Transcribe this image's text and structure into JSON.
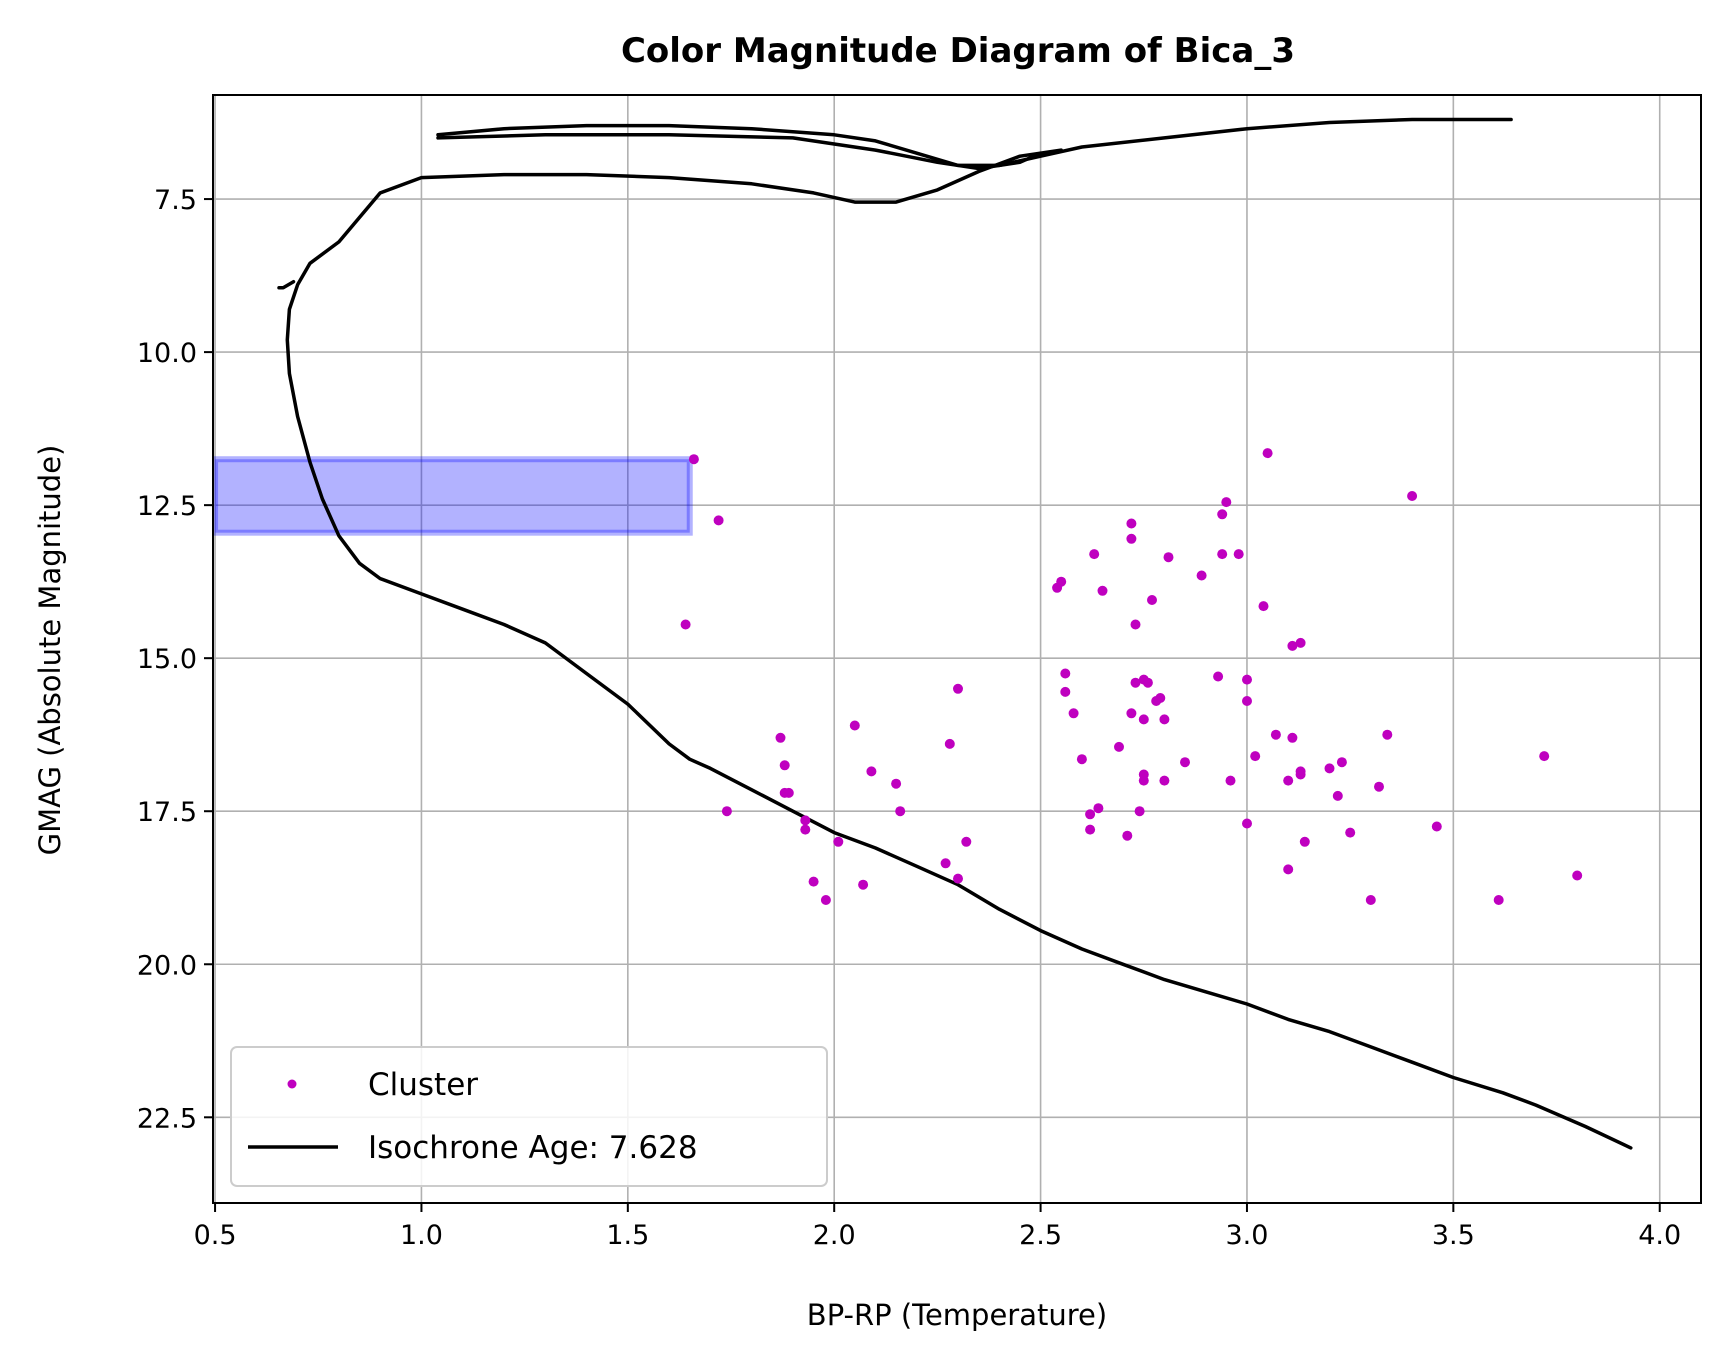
{
  "chart_data": {
    "type": "scatter",
    "title": "Color Magnitude Diagram of Bica_3",
    "xlabel": "BP-RP (Temperature)",
    "ylabel": "GMAG (Absolute Magnitude)",
    "xlim": [
      0.5,
      4.1
    ],
    "ylim": [
      23.9,
      5.8
    ],
    "y_inverted": true,
    "grid": true,
    "legend_position": "lower-left",
    "xticks": [
      "0.5",
      "1.0",
      "1.5",
      "2.0",
      "2.5",
      "3.0",
      "3.5",
      "4.0"
    ],
    "xtick_values": [
      0.5,
      1.0,
      1.5,
      2.0,
      2.5,
      3.0,
      3.5,
      4.0
    ],
    "yticks": [
      "7.5",
      "10.0",
      "12.5",
      "15.0",
      "17.5",
      "20.0",
      "22.5"
    ],
    "ytick_values": [
      7.5,
      10.0,
      12.5,
      15.0,
      17.5,
      20.0,
      22.5
    ],
    "series": [
      {
        "name": "Cluster",
        "kind": "scatter",
        "color": "#bf00bf",
        "points": [
          [
            1.66,
            11.75
          ],
          [
            1.72,
            12.75
          ],
          [
            1.64,
            14.45
          ],
          [
            1.74,
            17.5
          ],
          [
            1.87,
            16.3
          ],
          [
            1.88,
            16.75
          ],
          [
            1.88,
            17.2
          ],
          [
            1.89,
            17.2
          ],
          [
            1.93,
            17.65
          ],
          [
            1.93,
            17.8
          ],
          [
            1.95,
            18.65
          ],
          [
            1.98,
            18.95
          ],
          [
            2.01,
            18.0
          ],
          [
            2.05,
            16.1
          ],
          [
            2.07,
            18.7
          ],
          [
            2.09,
            16.85
          ],
          [
            2.15,
            17.05
          ],
          [
            2.16,
            17.5
          ],
          [
            2.27,
            18.35
          ],
          [
            2.28,
            16.4
          ],
          [
            2.3,
            18.6
          ],
          [
            2.3,
            15.5
          ],
          [
            2.32,
            18.0
          ],
          [
            2.54,
            13.85
          ],
          [
            2.55,
            13.75
          ],
          [
            2.56,
            15.25
          ],
          [
            2.56,
            15.55
          ],
          [
            2.58,
            15.9
          ],
          [
            2.6,
            16.65
          ],
          [
            2.62,
            17.55
          ],
          [
            2.62,
            17.8
          ],
          [
            2.63,
            13.3
          ],
          [
            2.64,
            17.45
          ],
          [
            2.65,
            13.9
          ],
          [
            2.69,
            16.45
          ],
          [
            2.71,
            17.9
          ],
          [
            2.72,
            15.9
          ],
          [
            2.72,
            13.05
          ],
          [
            2.72,
            12.8
          ],
          [
            2.73,
            14.45
          ],
          [
            2.73,
            15.4
          ],
          [
            2.74,
            17.5
          ],
          [
            2.75,
            15.35
          ],
          [
            2.75,
            16.0
          ],
          [
            2.75,
            16.9
          ],
          [
            2.75,
            17.0
          ],
          [
            2.76,
            15.4
          ],
          [
            2.77,
            14.05
          ],
          [
            2.78,
            15.7
          ],
          [
            2.79,
            15.65
          ],
          [
            2.8,
            16.0
          ],
          [
            2.8,
            17.0
          ],
          [
            2.81,
            13.35
          ],
          [
            2.85,
            16.7
          ],
          [
            2.89,
            13.65
          ],
          [
            2.93,
            15.3
          ],
          [
            2.94,
            12.65
          ],
          [
            2.94,
            13.3
          ],
          [
            2.95,
            12.45
          ],
          [
            2.96,
            17.0
          ],
          [
            2.98,
            13.3
          ],
          [
            3.0,
            15.35
          ],
          [
            3.0,
            15.7
          ],
          [
            3.0,
            17.7
          ],
          [
            3.02,
            16.6
          ],
          [
            3.04,
            14.15
          ],
          [
            3.05,
            11.65
          ],
          [
            3.07,
            16.25
          ],
          [
            3.1,
            17.0
          ],
          [
            3.1,
            18.45
          ],
          [
            3.11,
            14.8
          ],
          [
            3.11,
            16.3
          ],
          [
            3.13,
            14.75
          ],
          [
            3.13,
            16.85
          ],
          [
            3.13,
            16.9
          ],
          [
            3.14,
            18.0
          ],
          [
            3.2,
            16.8
          ],
          [
            3.22,
            17.25
          ],
          [
            3.23,
            16.7
          ],
          [
            3.25,
            17.85
          ],
          [
            3.3,
            18.95
          ],
          [
            3.32,
            17.1
          ],
          [
            3.34,
            16.25
          ],
          [
            3.4,
            12.35
          ],
          [
            3.46,
            17.75
          ],
          [
            3.61,
            18.95
          ],
          [
            3.72,
            16.6
          ],
          [
            3.8,
            18.55
          ]
        ]
      },
      {
        "name": "Isochrone Age: 7.628",
        "kind": "line",
        "color": "#000000",
        "segments": [
          [
            [
              3.93,
              23.0
            ],
            [
              3.82,
              22.65
            ],
            [
              3.7,
              22.3
            ],
            [
              3.62,
              22.1
            ],
            [
              3.5,
              21.85
            ],
            [
              3.4,
              21.6
            ],
            [
              3.3,
              21.35
            ],
            [
              3.2,
              21.1
            ],
            [
              3.1,
              20.9
            ],
            [
              3.0,
              20.65
            ],
            [
              2.9,
              20.45
            ],
            [
              2.8,
              20.25
            ],
            [
              2.7,
              20.0
            ],
            [
              2.6,
              19.75
            ],
            [
              2.5,
              19.45
            ],
            [
              2.4,
              19.1
            ],
            [
              2.3,
              18.7
            ],
            [
              2.2,
              18.4
            ],
            [
              2.1,
              18.1
            ],
            [
              2.0,
              17.85
            ],
            [
              1.9,
              17.5
            ],
            [
              1.8,
              17.15
            ],
            [
              1.7,
              16.8
            ],
            [
              1.65,
              16.65
            ],
            [
              1.6,
              16.4
            ],
            [
              1.5,
              15.75
            ],
            [
              1.4,
              15.25
            ],
            [
              1.3,
              14.75
            ],
            [
              1.2,
              14.45
            ],
            [
              1.1,
              14.2
            ],
            [
              1.0,
              13.95
            ],
            [
              0.9,
              13.7
            ],
            [
              0.85,
              13.45
            ],
            [
              0.8,
              13.0
            ],
            [
              0.76,
              12.4
            ],
            [
              0.73,
              11.8
            ],
            [
              0.7,
              11.05
            ],
            [
              0.68,
              10.35
            ],
            [
              0.675,
              9.8
            ],
            [
              0.68,
              9.3
            ],
            [
              0.7,
              8.9
            ],
            [
              0.73,
              8.55
            ],
            [
              0.8,
              8.2
            ],
            [
              0.9,
              7.4
            ],
            [
              1.0,
              7.15
            ],
            [
              1.2,
              7.1
            ],
            [
              1.4,
              7.1
            ],
            [
              1.6,
              7.15
            ],
            [
              1.8,
              7.25
            ],
            [
              1.95,
              7.4
            ],
            [
              2.05,
              7.55
            ],
            [
              2.15,
              7.55
            ],
            [
              2.25,
              7.35
            ],
            [
              2.35,
              7.05
            ],
            [
              2.45,
              6.8
            ],
            [
              2.55,
              6.7
            ]
          ],
          [
            [
              0.69,
              8.85
            ],
            [
              0.665,
              8.95
            ],
            [
              0.655,
              8.95
            ]
          ],
          [
            [
              1.04,
              6.45
            ],
            [
              1.2,
              6.35
            ],
            [
              1.4,
              6.3
            ],
            [
              1.6,
              6.3
            ],
            [
              1.8,
              6.35
            ],
            [
              2.0,
              6.45
            ],
            [
              2.1,
              6.55
            ],
            [
              2.2,
              6.75
            ],
            [
              2.3,
              6.95
            ],
            [
              2.4,
              6.95
            ],
            [
              2.5,
              6.8
            ],
            [
              2.6,
              6.65
            ],
            [
              2.8,
              6.5
            ],
            [
              3.0,
              6.35
            ],
            [
              3.2,
              6.25
            ],
            [
              3.4,
              6.2
            ],
            [
              3.64,
              6.2
            ]
          ],
          [
            [
              1.04,
              6.5
            ],
            [
              1.3,
              6.45
            ],
            [
              1.6,
              6.45
            ],
            [
              1.9,
              6.5
            ],
            [
              2.1,
              6.7
            ],
            [
              2.25,
              6.9
            ],
            [
              2.35,
              7.0
            ],
            [
              2.45,
              6.9
            ],
            [
              2.5,
              6.75
            ]
          ]
        ]
      }
    ],
    "highlight_rect": {
      "x_range": [
        0.5,
        1.65
      ],
      "y_range": [
        11.75,
        12.95
      ],
      "fill": "#0000ff",
      "fill_opacity": 0.3
    }
  }
}
